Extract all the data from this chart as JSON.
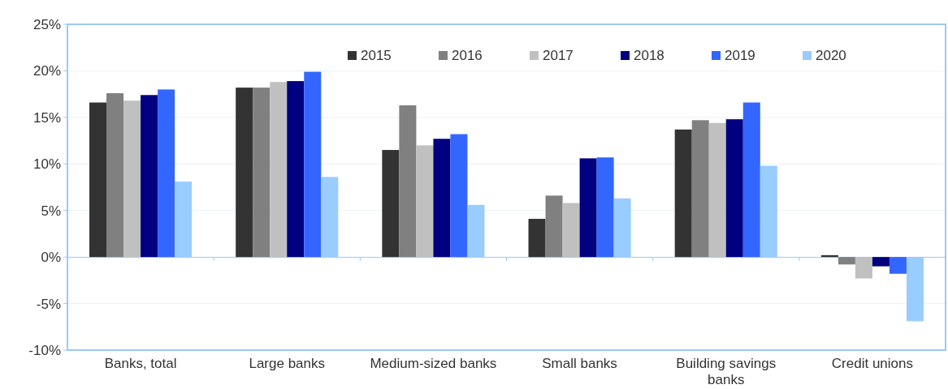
{
  "chart_data": {
    "type": "bar",
    "categories": [
      "Banks, total",
      "Large banks",
      "Medium-sized banks",
      "Small banks",
      "Building savings banks",
      "Credit unions"
    ],
    "series": [
      {
        "name": "2015",
        "color": "#333333",
        "values": [
          16.6,
          18.2,
          11.5,
          4.1,
          13.7,
          0.2
        ]
      },
      {
        "name": "2016",
        "color": "#808080",
        "values": [
          17.6,
          18.2,
          16.3,
          6.6,
          14.7,
          -0.8
        ]
      },
      {
        "name": "2017",
        "color": "#c0c0c0",
        "values": [
          16.8,
          18.8,
          12.0,
          5.8,
          14.4,
          -2.3
        ]
      },
      {
        "name": "2018",
        "color": "#000080",
        "values": [
          17.4,
          18.9,
          12.7,
          10.6,
          14.8,
          -1.0
        ]
      },
      {
        "name": "2019",
        "color": "#3366ff",
        "values": [
          18.0,
          19.9,
          13.2,
          10.7,
          16.6,
          -1.8
        ]
      },
      {
        "name": "2020",
        "color": "#99ccff",
        "values": [
          8.1,
          8.6,
          5.6,
          6.3,
          9.8,
          -6.9
        ]
      }
    ],
    "ylim": [
      -10,
      25
    ],
    "yticks": [
      {
        "value": -10,
        "label": "-10%"
      },
      {
        "value": -5,
        "label": "-5%"
      },
      {
        "value": 0,
        "label": "0%"
      },
      {
        "value": 5,
        "label": "5%"
      },
      {
        "value": 10,
        "label": "10%"
      },
      {
        "value": 15,
        "label": "15%"
      },
      {
        "value": 20,
        "label": "20%"
      },
      {
        "value": 25,
        "label": "25%"
      }
    ],
    "ref_lines": [
      {
        "axis": "y",
        "value": 0,
        "color": "#9cc9f5"
      }
    ],
    "grid": "y",
    "legend": "top"
  }
}
